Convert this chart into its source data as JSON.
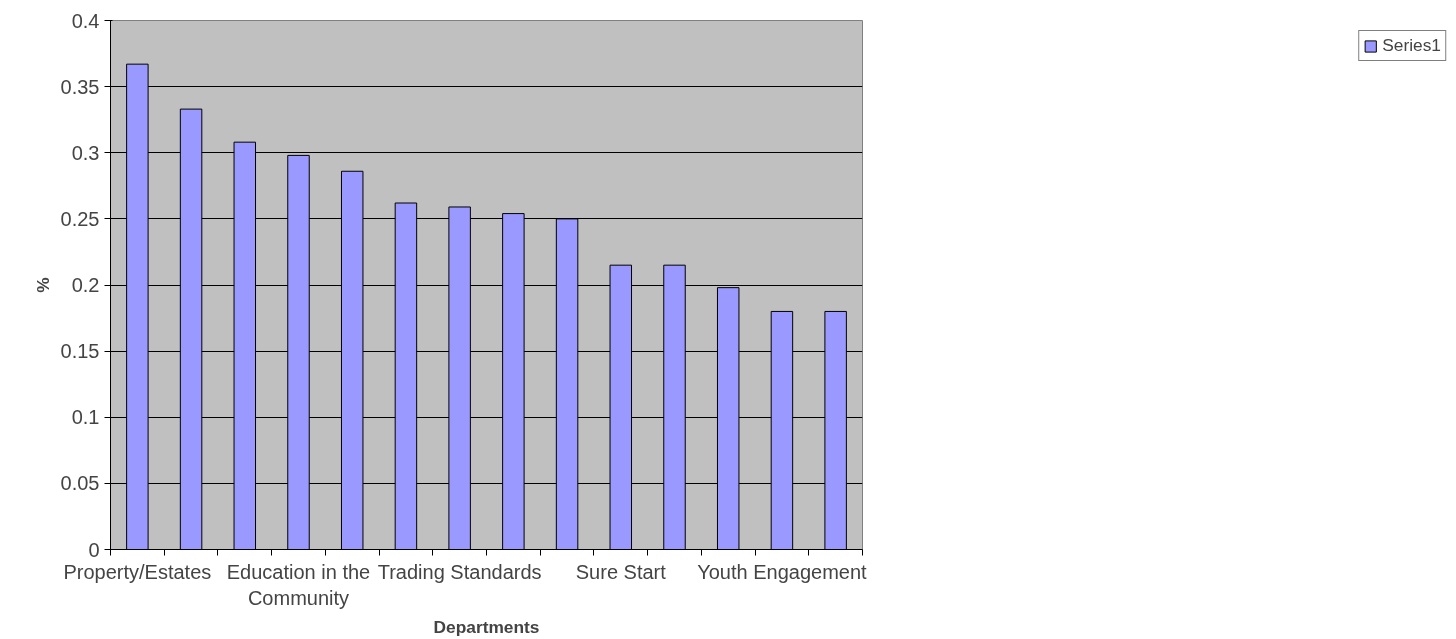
{
  "chart_data": {
    "type": "bar",
    "xlabel": "Departments",
    "ylabel": "%",
    "categories": [
      "Property/Estates",
      null,
      null,
      "Education in the Community",
      null,
      null,
      "Trading Standards",
      null,
      null,
      "Sure Start",
      null,
      null,
      "Youth Engagement",
      null
    ],
    "series": [
      {
        "name": "Series1",
        "color": "#9999ff",
        "values": [
          0.367,
          0.333,
          0.308,
          0.298,
          0.286,
          0.262,
          0.259,
          0.254,
          0.25,
          0.215,
          0.215,
          0.198,
          0.18,
          0.18
        ]
      }
    ],
    "ylim": [
      0,
      0.4
    ],
    "yticks": [
      0,
      0.05,
      0.1,
      0.15,
      0.2,
      0.25,
      0.3,
      0.35,
      0.4
    ],
    "grid": "y",
    "legend": "right"
  }
}
